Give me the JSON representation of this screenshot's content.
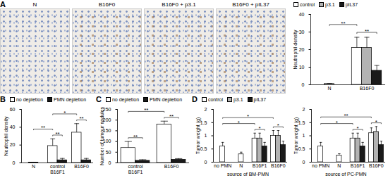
{
  "image_panels": {
    "panel": "A",
    "labels": [
      "N",
      "B16F0",
      "B16F0 + p3.1",
      "B16F0 + pIL37"
    ]
  },
  "chart_data": [
    {
      "type": "bar",
      "ylabel": "Neutrophil density",
      "categories": [
        "N",
        "B16F0"
      ],
      "series": [
        {
          "name": "control",
          "color": "#ffffff",
          "values": [
            0.5,
            21
          ],
          "errors": [
            0.3,
            6
          ]
        },
        {
          "name": "p3.1",
          "color": "#b3b3b3",
          "values": [
            null,
            21
          ],
          "errors": [
            null,
            6
          ]
        },
        {
          "name": "pIL37",
          "color": "#1a1a1a",
          "values": [
            null,
            8
          ],
          "errors": [
            null,
            3
          ]
        }
      ],
      "ylim": [
        0,
        40
      ],
      "yticks": [
        0,
        10,
        20,
        30,
        40
      ],
      "grid": false,
      "legend": "top",
      "annotations": [
        {
          "text": "**",
          "between": [
            [
              "N",
              "control"
            ],
            [
              "B16F0",
              "control"
            ]
          ]
        },
        {
          "text": "**",
          "between": [
            [
              "B16F0",
              "control"
            ],
            [
              "B16F0",
              "pIL37"
            ]
          ]
        }
      ]
    },
    {
      "type": "bar",
      "panel": "B",
      "ylabel": "Neutrophil density",
      "categories": [
        "N",
        "control",
        "B16F0"
      ],
      "x_groups": [
        {
          "label": "B16F1",
          "categories": [
            "control"
          ]
        }
      ],
      "series": [
        {
          "name": "no depletion",
          "color": "#ffffff",
          "values": [
            0.5,
            19,
            34
          ],
          "errors": [
            0.3,
            8,
            10
          ]
        },
        {
          "name": "PMN depletion",
          "color": "#1a1a1a",
          "values": [
            null,
            3,
            3
          ],
          "errors": [
            null,
            2,
            2
          ]
        }
      ],
      "ylim": [
        0,
        60
      ],
      "yticks": [
        0,
        20,
        40,
        60
      ],
      "grid": false,
      "legend": "top",
      "annotations": [
        {
          "text": "**",
          "between": [
            [
              "N",
              "no depletion"
            ],
            [
              "control",
              "no depletion"
            ]
          ]
        },
        {
          "text": "**",
          "between": [
            [
              "control",
              "no depletion"
            ],
            [
              "control",
              "PMN depletion"
            ]
          ]
        },
        {
          "text": "*",
          "between": [
            [
              "control",
              "no depletion"
            ],
            [
              "B16F0",
              "no depletion"
            ]
          ]
        },
        {
          "text": "**",
          "between": [
            [
              "B16F0",
              "no depletion"
            ],
            [
              "B16F0",
              "PMN depletion"
            ]
          ]
        }
      ]
    },
    {
      "type": "bar",
      "panel": "C",
      "ylabel": "Number of tumour nodules",
      "categories": [
        "control",
        "B16F0"
      ],
      "x_groups": [
        {
          "label": "B16F1",
          "categories": [
            "control"
          ]
        }
      ],
      "series": [
        {
          "name": "no depletion",
          "color": "#ffffff",
          "values": [
            70,
            180
          ],
          "errors": [
            30,
            15
          ]
        },
        {
          "name": "PMN depletion",
          "color": "#1a1a1a",
          "values": [
            10,
            15
          ],
          "errors": [
            5,
            5
          ]
        }
      ],
      "ylim": [
        0,
        250
      ],
      "yticks": [
        0,
        50,
        100,
        150,
        200,
        250
      ],
      "grid": false,
      "legend": "top",
      "annotations": [
        {
          "text": "**",
          "between": [
            [
              "control",
              "no depletion"
            ],
            [
              "control",
              "PMN depletion"
            ]
          ]
        },
        {
          "text": "**",
          "between": [
            [
              "control",
              "no depletion"
            ],
            [
              "B16F0",
              "no depletion"
            ]
          ]
        },
        {
          "text": "**",
          "between": [
            [
              "B16F0",
              "no depletion"
            ],
            [
              "B16F0",
              "PMN depletion"
            ]
          ]
        }
      ]
    },
    {
      "type": "bar",
      "panel": "D",
      "ylabel": "Tumor weight (g)",
      "xlabel": "source of BM-PMN",
      "categories": [
        "no PMN",
        "N",
        "B16F1",
        "B16F0"
      ],
      "series": [
        {
          "name": "control",
          "color": "#ffffff",
          "values": [
            0.6,
            0.3,
            0.9,
            1.0
          ],
          "errors": [
            0.15,
            0.08,
            0.2,
            0.2
          ]
        },
        {
          "name": "p3.1",
          "color": "#b3b3b3",
          "values": [
            null,
            null,
            0.9,
            1.0
          ],
          "errors": [
            null,
            null,
            0.2,
            0.2
          ]
        },
        {
          "name": "pIL37",
          "color": "#1a1a1a",
          "values": [
            null,
            null,
            0.6,
            0.65
          ],
          "errors": [
            null,
            null,
            0.15,
            0.15
          ]
        }
      ],
      "ylim": [
        0,
        2
      ],
      "yticks": [
        0,
        0.5,
        1,
        1.5,
        2
      ],
      "grid": false,
      "legend": "top",
      "annotations": [
        {
          "text": "*",
          "between": [
            [
              "no PMN",
              "control"
            ],
            [
              "B16F1",
              "control"
            ]
          ]
        },
        {
          "text": "*",
          "between": [
            [
              "no PMN",
              "control"
            ],
            [
              "B16F0",
              "control"
            ]
          ]
        },
        {
          "text": "*",
          "between": [
            [
              "B16F1",
              "control"
            ],
            [
              "B16F1",
              "pIL37"
            ]
          ]
        },
        {
          "text": "*",
          "between": [
            [
              "B16F0",
              "control"
            ],
            [
              "B16F0",
              "pIL37"
            ]
          ]
        }
      ]
    },
    {
      "type": "bar",
      "ylabel": "Tumor weight (g)",
      "xlabel": "source of PC-PMN",
      "categories": [
        "no PMN",
        "N",
        "B16F1",
        "B16F0"
      ],
      "series": [
        {
          "name": "control",
          "color": "#ffffff",
          "values": [
            0.6,
            0.25,
            0.9,
            1.1
          ],
          "errors": [
            0.15,
            0.07,
            0.2,
            0.2
          ]
        },
        {
          "name": "p3.1",
          "color": "#b3b3b3",
          "values": [
            null,
            null,
            0.9,
            1.15
          ],
          "errors": [
            null,
            null,
            0.2,
            0.2
          ]
        },
        {
          "name": "pIL37",
          "color": "#1a1a1a",
          "values": [
            null,
            null,
            0.6,
            0.65
          ],
          "errors": [
            null,
            null,
            0.15,
            0.15
          ]
        }
      ],
      "ylim": [
        0,
        2
      ],
      "yticks": [
        0,
        0.5,
        1,
        1.5,
        2
      ],
      "grid": false,
      "annotations": [
        {
          "text": "*",
          "between": [
            [
              "no PMN",
              "control"
            ],
            [
              "B16F1",
              "control"
            ]
          ]
        },
        {
          "text": "**",
          "between": [
            [
              "no PMN",
              "control"
            ],
            [
              "B16F0",
              "control"
            ]
          ]
        },
        {
          "text": "*",
          "between": [
            [
              "B16F1",
              "control"
            ],
            [
              "B16F1",
              "pIL37"
            ]
          ]
        },
        {
          "text": "*",
          "between": [
            [
              "B16F0",
              "control"
            ],
            [
              "B16F0",
              "pIL37"
            ]
          ]
        }
      ]
    }
  ]
}
